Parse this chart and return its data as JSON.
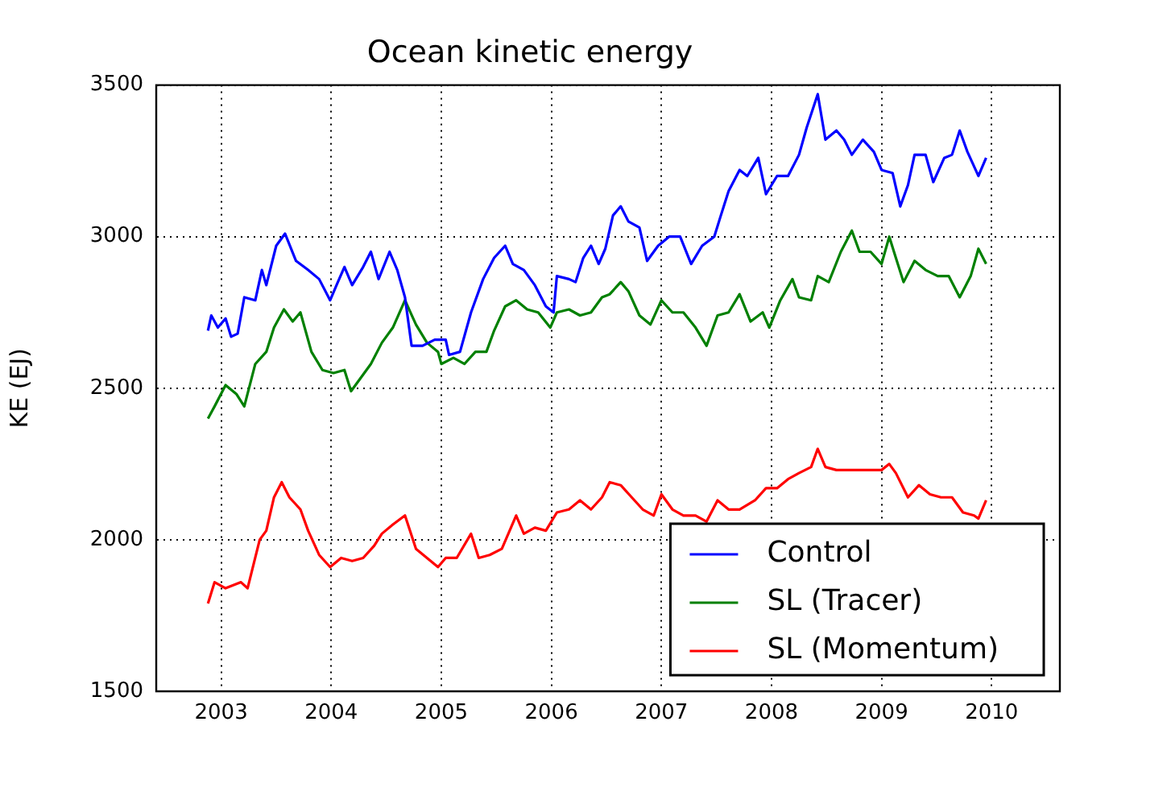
{
  "chart_data": {
    "type": "line",
    "title": "Ocean kinetic energy",
    "ylabel": "KE (EJ)",
    "xlim": [
      2002.41,
      2010.62
    ],
    "xticks": [
      2003,
      2004,
      2005,
      2006,
      2007,
      2008,
      2009,
      2010
    ],
    "ylim": [
      1500,
      3500
    ],
    "yticks": [
      1500,
      2000,
      2500,
      3000,
      3500
    ],
    "grid": true,
    "legend": "bottom right",
    "marker": "none",
    "line_style": "solid",
    "series": [
      {
        "name": "Control",
        "color": "#0000ff",
        "x": [
          2002.88,
          2002.91,
          2002.97,
          2003.04,
          2003.09,
          2003.15,
          2003.21,
          2003.31,
          2003.37,
          2003.41,
          2003.5,
          2003.58,
          2003.68,
          2003.79,
          2003.89,
          2003.99,
          2004.06,
          2004.12,
          2004.19,
          2004.29,
          2004.36,
          2004.43,
          2004.53,
          2004.6,
          2004.67,
          2004.73,
          2004.83,
          2004.94,
          2005.04,
          2005.07,
          2005.17,
          2005.27,
          2005.38,
          2005.48,
          2005.58,
          2005.65,
          2005.75,
          2005.85,
          2005.95,
          2006.02,
          2006.05,
          2006.16,
          2006.22,
          2006.29,
          2006.36,
          2006.43,
          2006.49,
          2006.56,
          2006.63,
          2006.7,
          2006.8,
          2006.87,
          2006.97,
          2007.07,
          2007.17,
          2007.27,
          2007.37,
          2007.48,
          2007.54,
          2007.61,
          2007.71,
          2007.78,
          2007.88,
          2007.95,
          2008.05,
          2008.15,
          2008.25,
          2008.32,
          2008.42,
          2008.49,
          2008.59,
          2008.66,
          2008.73,
          2008.83,
          2008.93,
          2009.0,
          2009.1,
          2009.17,
          2009.24,
          2009.3,
          2009.4,
          2009.47,
          2009.57,
          2009.64,
          2009.71,
          2009.78,
          2009.88,
          2009.95
        ],
        "values": [
          2690,
          2740,
          2700,
          2730,
          2670,
          2680,
          2800,
          2790,
          2890,
          2840,
          2970,
          3010,
          2920,
          2890,
          2860,
          2790,
          2850,
          2900,
          2840,
          2900,
          2950,
          2860,
          2950,
          2890,
          2800,
          2640,
          2640,
          2660,
          2660,
          2610,
          2620,
          2750,
          2860,
          2930,
          2970,
          2910,
          2890,
          2840,
          2770,
          2750,
          2870,
          2860,
          2850,
          2930,
          2970,
          2910,
          2960,
          3070,
          3100,
          3050,
          3030,
          2920,
          2970,
          3000,
          3000,
          2910,
          2970,
          3000,
          3070,
          3150,
          3220,
          3200,
          3260,
          3140,
          3200,
          3200,
          3270,
          3360,
          3470,
          3320,
          3350,
          3320,
          3270,
          3320,
          3280,
          3220,
          3210,
          3100,
          3170,
          3270,
          3270,
          3180,
          3260,
          3270,
          3350,
          3280,
          3200,
          3260
        ]
      },
      {
        "name": "SL (Tracer)",
        "color": "#008000",
        "x": [
          2002.88,
          2002.94,
          2003.04,
          2003.14,
          2003.21,
          2003.31,
          2003.41,
          2003.48,
          2003.57,
          2003.65,
          2003.72,
          2003.82,
          2003.92,
          2004.02,
          2004.12,
          2004.18,
          2004.26,
          2004.36,
          2004.46,
          2004.56,
          2004.67,
          2004.77,
          2004.87,
          2004.97,
          2005.0,
          2005.11,
          2005.21,
          2005.31,
          2005.41,
          2005.48,
          2005.58,
          2005.68,
          2005.78,
          2005.88,
          2005.99,
          2006.05,
          2006.16,
          2006.26,
          2006.36,
          2006.46,
          2006.53,
          2006.63,
          2006.7,
          2006.8,
          2006.9,
          2007.0,
          2007.1,
          2007.2,
          2007.31,
          2007.41,
          2007.51,
          2007.61,
          2007.71,
          2007.81,
          2007.92,
          2007.98,
          2008.08,
          2008.19,
          2008.25,
          2008.36,
          2008.42,
          2008.52,
          2008.63,
          2008.73,
          2008.8,
          2008.9,
          2009.0,
          2009.07,
          2009.13,
          2009.2,
          2009.3,
          2009.4,
          2009.51,
          2009.61,
          2009.71,
          2009.81,
          2009.88,
          2009.95
        ],
        "values": [
          2400,
          2440,
          2510,
          2480,
          2440,
          2580,
          2620,
          2700,
          2760,
          2720,
          2750,
          2620,
          2560,
          2550,
          2560,
          2490,
          2530,
          2580,
          2650,
          2700,
          2790,
          2710,
          2650,
          2620,
          2580,
          2600,
          2580,
          2620,
          2620,
          2690,
          2770,
          2790,
          2760,
          2750,
          2700,
          2750,
          2760,
          2740,
          2750,
          2800,
          2810,
          2850,
          2820,
          2740,
          2710,
          2790,
          2750,
          2750,
          2700,
          2640,
          2740,
          2750,
          2810,
          2720,
          2750,
          2700,
          2790,
          2860,
          2800,
          2790,
          2870,
          2850,
          2950,
          3020,
          2950,
          2950,
          2910,
          3000,
          2930,
          2850,
          2920,
          2890,
          2870,
          2870,
          2800,
          2870,
          2960,
          2910
        ]
      },
      {
        "name": "SL (Momentum)",
        "color": "#ff0000",
        "x": [
          2002.88,
          2002.94,
          2003.04,
          2003.18,
          2003.24,
          2003.35,
          2003.41,
          2003.48,
          2003.55,
          2003.62,
          2003.72,
          2003.79,
          2003.89,
          2003.99,
          2004.09,
          2004.19,
          2004.29,
          2004.39,
          2004.46,
          2004.56,
          2004.67,
          2004.77,
          2004.87,
          2004.97,
          2005.04,
          2005.14,
          2005.27,
          2005.34,
          2005.44,
          2005.55,
          2005.68,
          2005.75,
          2005.85,
          2005.95,
          2006.05,
          2006.16,
          2006.26,
          2006.36,
          2006.46,
          2006.53,
          2006.63,
          2006.73,
          2006.83,
          2006.93,
          2007.0,
          2007.1,
          2007.2,
          2007.31,
          2007.41,
          2007.51,
          2007.61,
          2007.71,
          2007.85,
          2007.95,
          2008.05,
          2008.15,
          2008.25,
          2008.36,
          2008.42,
          2008.49,
          2008.59,
          2008.73,
          2008.86,
          2009.0,
          2009.07,
          2009.13,
          2009.24,
          2009.34,
          2009.44,
          2009.54,
          2009.64,
          2009.74,
          2009.84,
          2009.88,
          2009.95
        ],
        "values": [
          1790,
          1860,
          1840,
          1860,
          1840,
          2000,
          2030,
          2140,
          2190,
          2140,
          2100,
          2030,
          1950,
          1910,
          1940,
          1930,
          1940,
          1980,
          2020,
          2050,
          2080,
          1970,
          1940,
          1910,
          1940,
          1940,
          2020,
          1940,
          1950,
          1970,
          2080,
          2020,
          2040,
          2030,
          2090,
          2100,
          2130,
          2100,
          2140,
          2190,
          2180,
          2140,
          2100,
          2080,
          2150,
          2100,
          2080,
          2080,
          2060,
          2130,
          2100,
          2100,
          2130,
          2170,
          2170,
          2200,
          2220,
          2240,
          2300,
          2240,
          2230,
          2230,
          2230,
          2230,
          2250,
          2220,
          2140,
          2180,
          2150,
          2140,
          2140,
          2090,
          2080,
          2070,
          2130
        ]
      }
    ]
  }
}
